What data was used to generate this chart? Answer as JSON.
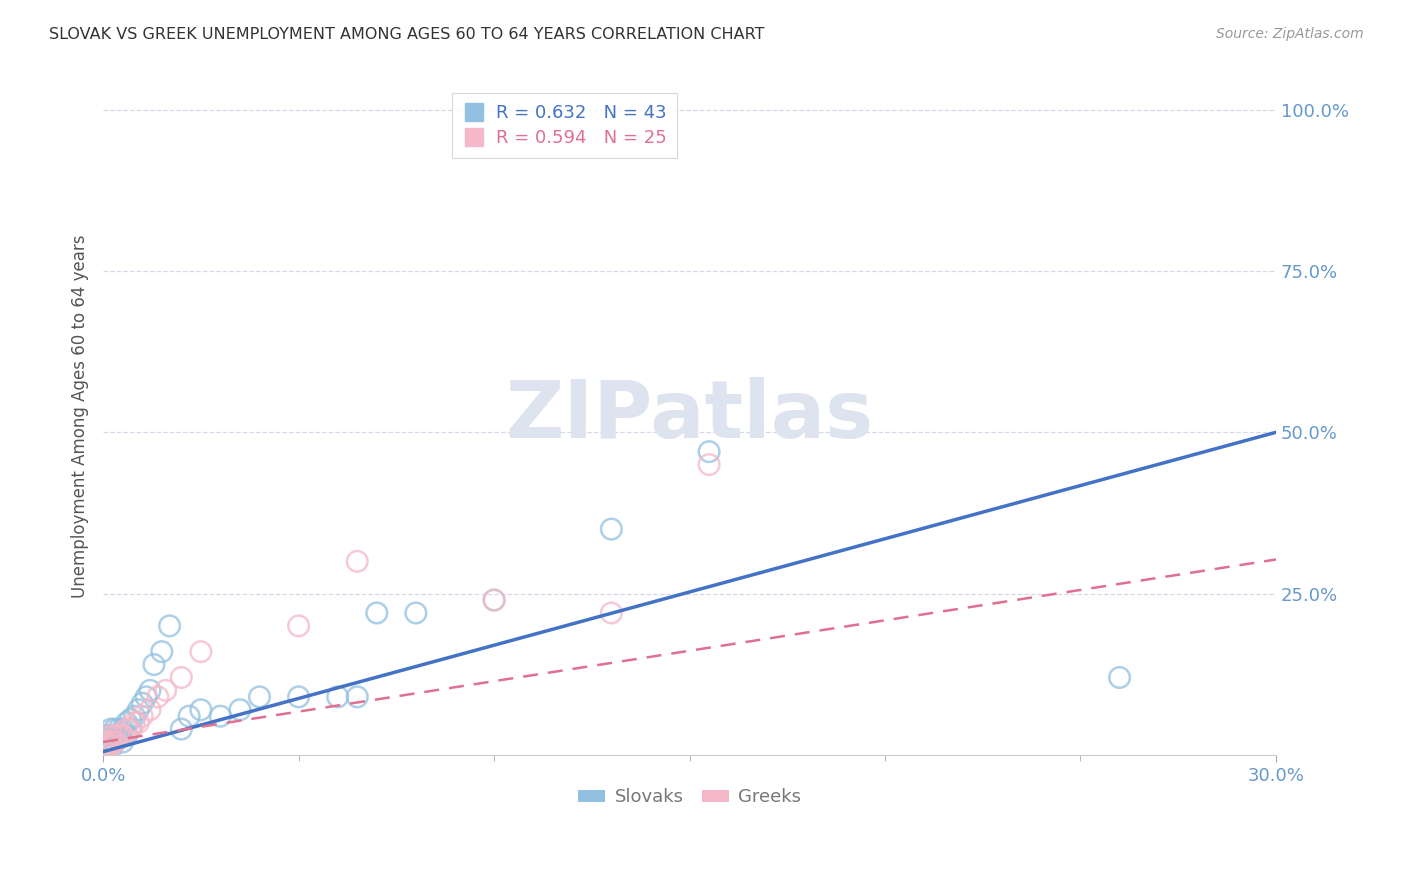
{
  "title": "SLOVAK VS GREEK UNEMPLOYMENT AMONG AGES 60 TO 64 YEARS CORRELATION CHART",
  "source": "Source: ZipAtlas.com",
  "ylabel": "Unemployment Among Ages 60 to 64 years",
  "xlim": [
    0.0,
    0.3
  ],
  "ylim": [
    0.0,
    1.05
  ],
  "xticks": [
    0.0,
    0.3
  ],
  "xticklabels": [
    "0.0%",
    "30.0%"
  ],
  "yticks": [
    0.25,
    0.5,
    0.75,
    1.0
  ],
  "yticklabels": [
    "25.0%",
    "50.0%",
    "75.0%",
    "100.0%"
  ],
  "legend_r1": "R = 0.632   N = 43",
  "legend_r2": "R = 0.594   N = 25",
  "slovak_color": "#92c0e0",
  "greek_color": "#f5b8c8",
  "slovak_line_color": "#4472c4",
  "greek_line_color": "#e07090",
  "tick_color": "#6699cc",
  "grid_color": "#d8d8e8",
  "watermark_color": "#dde4ef",
  "slovaks_x": [
    0.001,
    0.001,
    0.001,
    0.001,
    0.001,
    0.002,
    0.002,
    0.002,
    0.002,
    0.003,
    0.003,
    0.003,
    0.004,
    0.004,
    0.005,
    0.005,
    0.006,
    0.006,
    0.007,
    0.007,
    0.008,
    0.009,
    0.01,
    0.011,
    0.012,
    0.013,
    0.015,
    0.017,
    0.02,
    0.022,
    0.025,
    0.03,
    0.035,
    0.04,
    0.05,
    0.06,
    0.065,
    0.07,
    0.08,
    0.1,
    0.13,
    0.155,
    0.26
  ],
  "slovaks_y": [
    0.01,
    0.015,
    0.02,
    0.025,
    0.03,
    0.01,
    0.02,
    0.03,
    0.04,
    0.02,
    0.03,
    0.04,
    0.025,
    0.04,
    0.02,
    0.04,
    0.03,
    0.05,
    0.04,
    0.055,
    0.06,
    0.07,
    0.08,
    0.09,
    0.1,
    0.14,
    0.16,
    0.2,
    0.04,
    0.06,
    0.07,
    0.06,
    0.07,
    0.09,
    0.09,
    0.09,
    0.09,
    0.22,
    0.22,
    0.24,
    0.35,
    0.47,
    0.12
  ],
  "greeks_x": [
    0.001,
    0.001,
    0.001,
    0.002,
    0.002,
    0.002,
    0.003,
    0.003,
    0.004,
    0.005,
    0.006,
    0.007,
    0.008,
    0.009,
    0.01,
    0.012,
    0.014,
    0.016,
    0.02,
    0.025,
    0.05,
    0.065,
    0.1,
    0.13,
    0.155
  ],
  "greeks_y": [
    0.01,
    0.015,
    0.02,
    0.015,
    0.02,
    0.03,
    0.02,
    0.03,
    0.03,
    0.03,
    0.04,
    0.04,
    0.05,
    0.05,
    0.06,
    0.07,
    0.09,
    0.1,
    0.12,
    0.16,
    0.2,
    0.3,
    0.24,
    0.22,
    0.45
  ],
  "sk_line_x0": 0.0,
  "sk_line_y0": 0.005,
  "sk_line_x1": 0.3,
  "sk_line_y1": 0.5,
  "gr_line_x0": 0.0,
  "gr_line_y0": 0.02,
  "gr_line_x1": 0.3,
  "gr_line_y1": 0.35
}
